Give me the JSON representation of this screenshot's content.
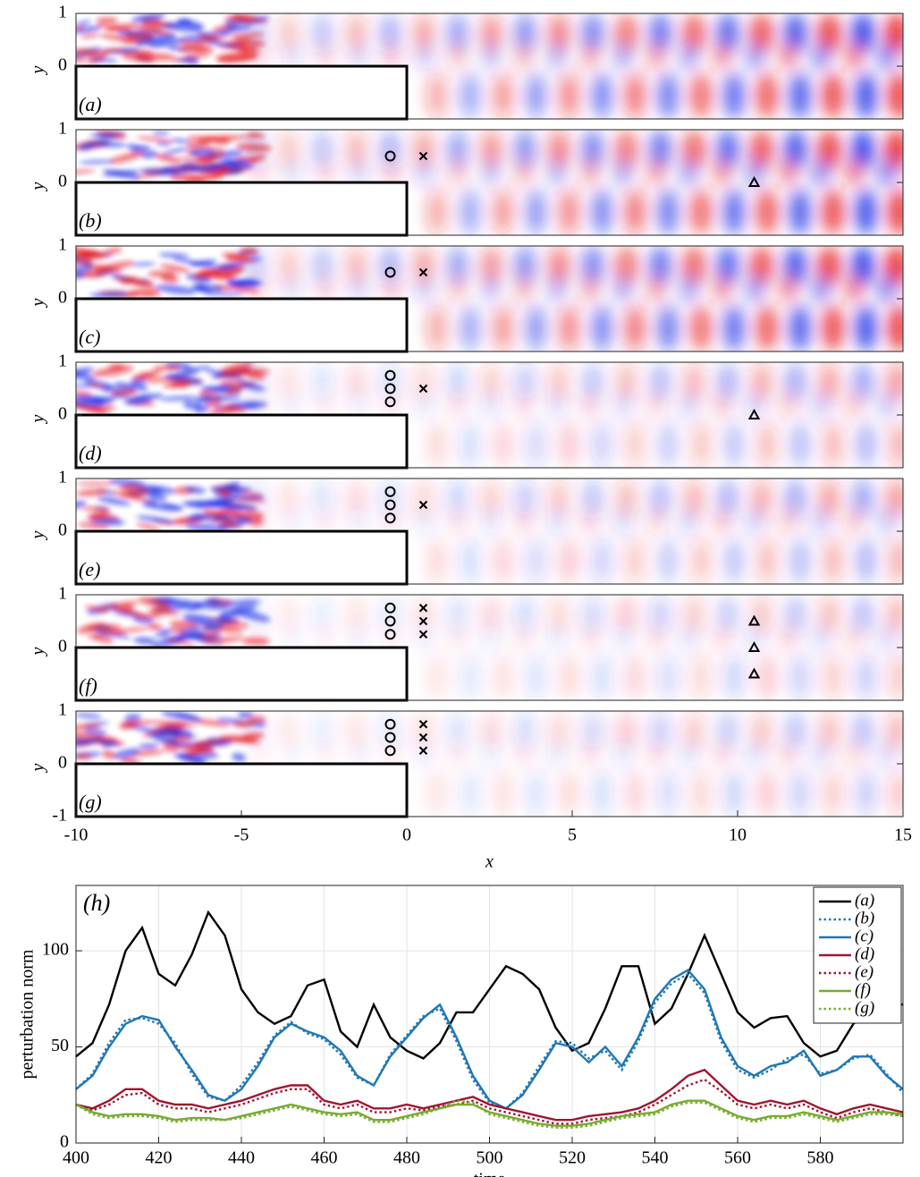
{
  "chart_data": [
    {
      "type": "field",
      "label": "(a)",
      "ylabel": "y",
      "xlim": [
        -10,
        15
      ],
      "ylim": [
        -1,
        1
      ],
      "yticks": [
        0,
        1
      ],
      "markers": []
    },
    {
      "type": "field",
      "label": "(b)",
      "ylabel": "y",
      "xlim": [
        -10,
        15
      ],
      "ylim": [
        -1,
        1
      ],
      "yticks": [
        0,
        1
      ],
      "markers": [
        {
          "symbol": "circle",
          "x": [
            -0.5
          ],
          "y": [
            0.5
          ]
        },
        {
          "symbol": "cross",
          "x": [
            0.5
          ],
          "y": [
            0.5
          ]
        },
        {
          "symbol": "triangle",
          "x": [
            10.5
          ],
          "y": [
            0
          ]
        }
      ]
    },
    {
      "type": "field",
      "label": "(c)",
      "ylabel": "y",
      "xlim": [
        -10,
        15
      ],
      "ylim": [
        -1,
        1
      ],
      "yticks": [
        0,
        1
      ],
      "markers": [
        {
          "symbol": "circle",
          "x": [
            -0.5
          ],
          "y": [
            0.5
          ]
        },
        {
          "symbol": "cross",
          "x": [
            0.5
          ],
          "y": [
            0.5
          ]
        }
      ]
    },
    {
      "type": "field",
      "label": "(d)",
      "ylabel": "y",
      "xlim": [
        -10,
        15
      ],
      "ylim": [
        -1,
        1
      ],
      "yticks": [
        0,
        1
      ],
      "markers": [
        {
          "symbol": "circle",
          "x": [
            -0.5,
            -0.5,
            -0.5
          ],
          "y": [
            0.25,
            0.5,
            0.75
          ]
        },
        {
          "symbol": "cross",
          "x": [
            0.5
          ],
          "y": [
            0.5
          ]
        },
        {
          "symbol": "triangle",
          "x": [
            10.5
          ],
          "y": [
            0
          ]
        }
      ]
    },
    {
      "type": "field",
      "label": "(e)",
      "ylabel": "y",
      "xlim": [
        -10,
        15
      ],
      "ylim": [
        -1,
        1
      ],
      "yticks": [
        0,
        1
      ],
      "markers": [
        {
          "symbol": "circle",
          "x": [
            -0.5,
            -0.5,
            -0.5
          ],
          "y": [
            0.25,
            0.5,
            0.75
          ]
        },
        {
          "symbol": "cross",
          "x": [
            0.5
          ],
          "y": [
            0.5
          ]
        }
      ]
    },
    {
      "type": "field",
      "label": "(f)",
      "ylabel": "y",
      "xlim": [
        -10,
        15
      ],
      "ylim": [
        -1,
        1
      ],
      "yticks": [
        0,
        1
      ],
      "markers": [
        {
          "symbol": "circle",
          "x": [
            -0.5,
            -0.5,
            -0.5
          ],
          "y": [
            0.25,
            0.5,
            0.75
          ]
        },
        {
          "symbol": "cross",
          "x": [
            0.5,
            0.5,
            0.5
          ],
          "y": [
            0.25,
            0.5,
            0.75
          ]
        },
        {
          "symbol": "triangle",
          "x": [
            10.5,
            10.5,
            10.5
          ],
          "y": [
            -0.5,
            0,
            0.5
          ]
        }
      ]
    },
    {
      "type": "field",
      "label": "(g)",
      "ylabel": "y",
      "xlabel": "x",
      "xlim": [
        -10,
        15
      ],
      "ylim": [
        -1,
        1
      ],
      "yticks": [
        -1,
        0,
        1
      ],
      "xticks": [
        -10,
        -5,
        0,
        5,
        10,
        15
      ],
      "markers": [
        {
          "symbol": "circle",
          "x": [
            -0.5,
            -0.5,
            -0.5
          ],
          "y": [
            0.25,
            0.5,
            0.75
          ]
        },
        {
          "symbol": "cross",
          "x": [
            0.5,
            0.5,
            0.5
          ],
          "y": [
            0.25,
            0.5,
            0.75
          ]
        }
      ]
    },
    {
      "type": "line",
      "annotation": "(h)",
      "xlabel": "time",
      "ylabel": "perturbation norm",
      "xlim": [
        400,
        600
      ],
      "ylim": [
        0,
        134
      ],
      "xticks": [
        400,
        420,
        440,
        460,
        480,
        500,
        520,
        540,
        560,
        580
      ],
      "yticks": [
        0,
        50,
        100
      ],
      "grid": true,
      "legend": "upper right",
      "x": [
        400,
        404,
        408,
        412,
        416,
        420,
        424,
        428,
        432,
        436,
        440,
        444,
        448,
        452,
        456,
        460,
        464,
        468,
        472,
        476,
        480,
        484,
        488,
        492,
        496,
        500,
        504,
        508,
        512,
        516,
        520,
        524,
        528,
        532,
        536,
        540,
        544,
        548,
        552,
        556,
        560,
        564,
        568,
        572,
        576,
        580,
        584,
        588,
        592,
        596,
        600
      ],
      "series": [
        {
          "name": "(a)",
          "color": "#000000",
          "dash": false,
          "values": [
            45,
            52,
            72,
            100,
            112,
            88,
            82,
            98,
            120,
            108,
            80,
            68,
            62,
            66,
            82,
            85,
            58,
            50,
            72,
            55,
            48,
            44,
            52,
            68,
            68,
            80,
            92,
            88,
            80,
            60,
            48,
            52,
            70,
            92,
            92,
            62,
            70,
            88,
            108,
            88,
            68,
            60,
            65,
            66,
            52,
            45,
            48,
            62,
            68,
            74,
            72
          ]
        },
        {
          "name": "(b)",
          "color": "#1f77b4",
          "dash": true,
          "values": [
            28,
            36,
            52,
            64,
            65,
            62,
            52,
            36,
            24,
            22,
            30,
            42,
            56,
            63,
            57,
            54,
            46,
            34,
            30,
            46,
            56,
            66,
            70,
            53,
            33,
            21,
            18,
            26,
            40,
            53,
            52,
            44,
            48,
            38,
            53,
            73,
            83,
            88,
            78,
            53,
            38,
            34,
            38,
            44,
            46,
            36,
            38,
            44,
            46,
            36,
            26
          ]
        },
        {
          "name": "(c)",
          "color": "#1f77b4",
          "dash": false,
          "values": [
            28,
            35,
            50,
            62,
            66,
            64,
            50,
            38,
            25,
            22,
            28,
            40,
            55,
            62,
            58,
            55,
            48,
            35,
            30,
            45,
            55,
            65,
            72,
            55,
            35,
            22,
            18,
            25,
            38,
            52,
            50,
            42,
            50,
            40,
            55,
            75,
            85,
            90,
            80,
            55,
            40,
            35,
            40,
            42,
            48,
            35,
            38,
            45,
            45,
            35,
            28
          ]
        },
        {
          "name": "(d)",
          "color": "#a2142f",
          "dash": false,
          "values": [
            20,
            18,
            22,
            28,
            28,
            22,
            20,
            20,
            18,
            20,
            22,
            25,
            28,
            30,
            30,
            22,
            20,
            22,
            18,
            18,
            20,
            18,
            20,
            22,
            24,
            20,
            18,
            16,
            14,
            12,
            12,
            14,
            15,
            16,
            18,
            22,
            28,
            35,
            38,
            30,
            22,
            20,
            22,
            20,
            22,
            18,
            15,
            18,
            20,
            18,
            16
          ]
        },
        {
          "name": "(e)",
          "color": "#a2142f",
          "dash": true,
          "values": [
            20,
            17,
            20,
            25,
            26,
            20,
            18,
            18,
            16,
            18,
            20,
            23,
            26,
            28,
            28,
            20,
            18,
            20,
            16,
            16,
            18,
            17,
            19,
            20,
            22,
            18,
            16,
            14,
            12,
            10,
            10,
            12,
            13,
            14,
            16,
            20,
            25,
            30,
            33,
            27,
            20,
            18,
            20,
            18,
            20,
            16,
            13,
            16,
            18,
            16,
            14
          ]
        },
        {
          "name": "(f)",
          "color": "#77ac30",
          "dash": false,
          "values": [
            20,
            16,
            14,
            15,
            15,
            14,
            12,
            13,
            13,
            12,
            14,
            16,
            18,
            20,
            18,
            16,
            15,
            16,
            12,
            12,
            14,
            16,
            18,
            20,
            20,
            16,
            14,
            12,
            10,
            9,
            9,
            10,
            12,
            14,
            15,
            16,
            20,
            22,
            22,
            18,
            14,
            12,
            14,
            14,
            16,
            14,
            12,
            14,
            16,
            16,
            15
          ]
        },
        {
          "name": "(g)",
          "color": "#77ac30",
          "dash": true,
          "values": [
            20,
            15,
            13,
            14,
            14,
            13,
            11,
            12,
            12,
            12,
            13,
            15,
            17,
            19,
            17,
            15,
            14,
            15,
            11,
            11,
            13,
            15,
            18,
            22,
            21,
            15,
            13,
            11,
            9,
            8,
            8,
            9,
            11,
            13,
            14,
            15,
            19,
            21,
            21,
            17,
            13,
            11,
            13,
            13,
            15,
            13,
            11,
            13,
            15,
            15,
            14
          ]
        }
      ]
    }
  ]
}
